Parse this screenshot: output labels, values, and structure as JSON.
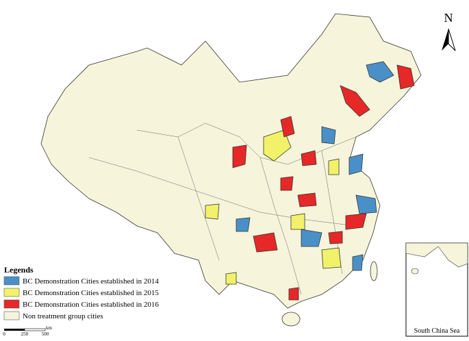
{
  "north_arrow": {
    "label": "N"
  },
  "legend": {
    "title": "Legends",
    "items": [
      {
        "label": "BC Demonstration Cities established in 2014",
        "color": "#4a90c8"
      },
      {
        "label": "BC Demonstration Cities established in 2015",
        "color": "#f2f26a"
      },
      {
        "label": "BC Demonstration Cities established in 2016",
        "color": "#e62828"
      },
      {
        "label": "Non treatment group cities",
        "color": "#f6f4da"
      }
    ]
  },
  "scale_bar": {
    "labels": [
      "0",
      "250",
      "500"
    ],
    "unit": "km"
  },
  "inset": {
    "label": "South China Sea"
  }
}
